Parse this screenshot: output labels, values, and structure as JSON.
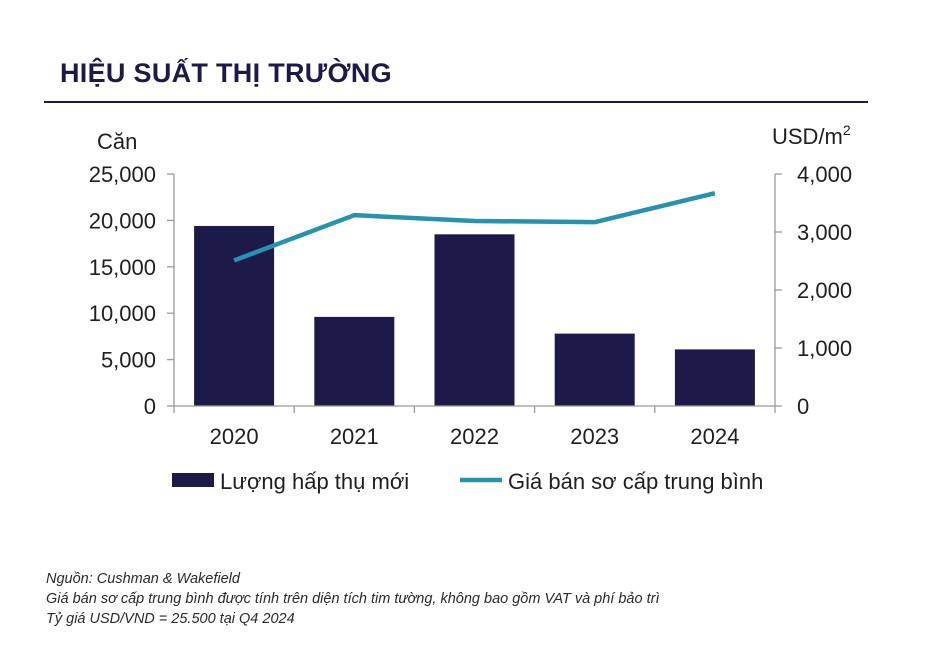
{
  "title": "HIỆU SUẤT THỊ TRƯỜNG",
  "chart_data": {
    "type": "bar",
    "categories": [
      "2020",
      "2021",
      "2022",
      "2023",
      "2024"
    ],
    "left_axis": {
      "label": "Căn",
      "ylim": [
        0,
        25000
      ],
      "ticks": [
        0,
        5000,
        10000,
        15000,
        20000,
        25000
      ],
      "tick_labels": [
        "0",
        "5,000",
        "10,000",
        "15,000",
        "20,000",
        "25,000"
      ]
    },
    "right_axis": {
      "label": "USD/m",
      "label_superscript": "2",
      "ylim": [
        0,
        4000
      ],
      "ticks": [
        0,
        1000,
        2000,
        3000,
        4000
      ],
      "tick_labels": [
        "0",
        "1,000",
        "2,000",
        "3,000",
        "4,000"
      ]
    },
    "series": [
      {
        "name": "Lượng hấp thụ mới",
        "type": "bar",
        "axis": "left",
        "color": "#1d1a4a",
        "values": [
          19400,
          9600,
          18500,
          7800,
          6100
        ]
      },
      {
        "name": "Giá bán sơ cấp trung bình",
        "type": "line",
        "axis": "right",
        "color": "#2593ad",
        "values": [
          2510,
          3290,
          3190,
          3170,
          3670
        ]
      }
    ],
    "grid": false,
    "legend_position": "bottom"
  },
  "footnotes": [
    "Nguồn: Cushman & Wakefield",
    "Giá bán sơ cấp trung bình được tính trên diện tích tim tường, không bao gồm VAT và phí bảo trì",
    "Tỷ giá USD/VND = 25.500 tại Q4 2024"
  ]
}
